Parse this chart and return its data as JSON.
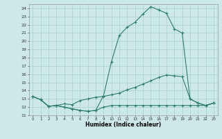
{
  "xlabel": "Humidex (Indice chaleur)",
  "x": [
    0,
    1,
    2,
    3,
    4,
    5,
    6,
    7,
    8,
    9,
    10,
    11,
    12,
    13,
    14,
    15,
    16,
    17,
    18,
    19,
    20,
    21,
    22,
    23
  ],
  "y_max": [
    13.3,
    12.9,
    12.1,
    12.2,
    12.0,
    11.8,
    11.6,
    11.5,
    11.6,
    13.4,
    17.5,
    20.7,
    21.7,
    22.3,
    23.3,
    24.2,
    23.8,
    23.4,
    21.5,
    21.0,
    13.0,
    12.5,
    12.2,
    12.5
  ],
  "y_mid": [
    13.3,
    12.9,
    12.1,
    12.2,
    12.4,
    12.3,
    12.8,
    13.0,
    13.2,
    13.3,
    13.5,
    13.7,
    14.1,
    14.4,
    14.8,
    15.2,
    15.6,
    15.9,
    15.8,
    15.7,
    13.0,
    12.5,
    12.2,
    12.5
  ],
  "y_min": [
    13.3,
    12.9,
    12.1,
    12.2,
    12.0,
    11.8,
    11.6,
    11.5,
    11.6,
    12.0,
    12.2,
    12.2,
    12.2,
    12.2,
    12.2,
    12.2,
    12.2,
    12.2,
    12.2,
    12.2,
    12.2,
    12.2,
    12.2,
    12.5
  ],
  "line_color": "#2e7d6e",
  "bg_color": "#cce8e8",
  "grid_color": "#aacece",
  "ylim": [
    11,
    24.5
  ],
  "xlim": [
    -0.5,
    23.5
  ],
  "yticks": [
    11,
    12,
    13,
    14,
    15,
    16,
    17,
    18,
    19,
    20,
    21,
    22,
    23,
    24
  ],
  "xticks": [
    0,
    1,
    2,
    3,
    4,
    5,
    6,
    7,
    8,
    9,
    10,
    11,
    12,
    13,
    14,
    15,
    16,
    17,
    18,
    19,
    20,
    21,
    22,
    23
  ],
  "marker": "+"
}
